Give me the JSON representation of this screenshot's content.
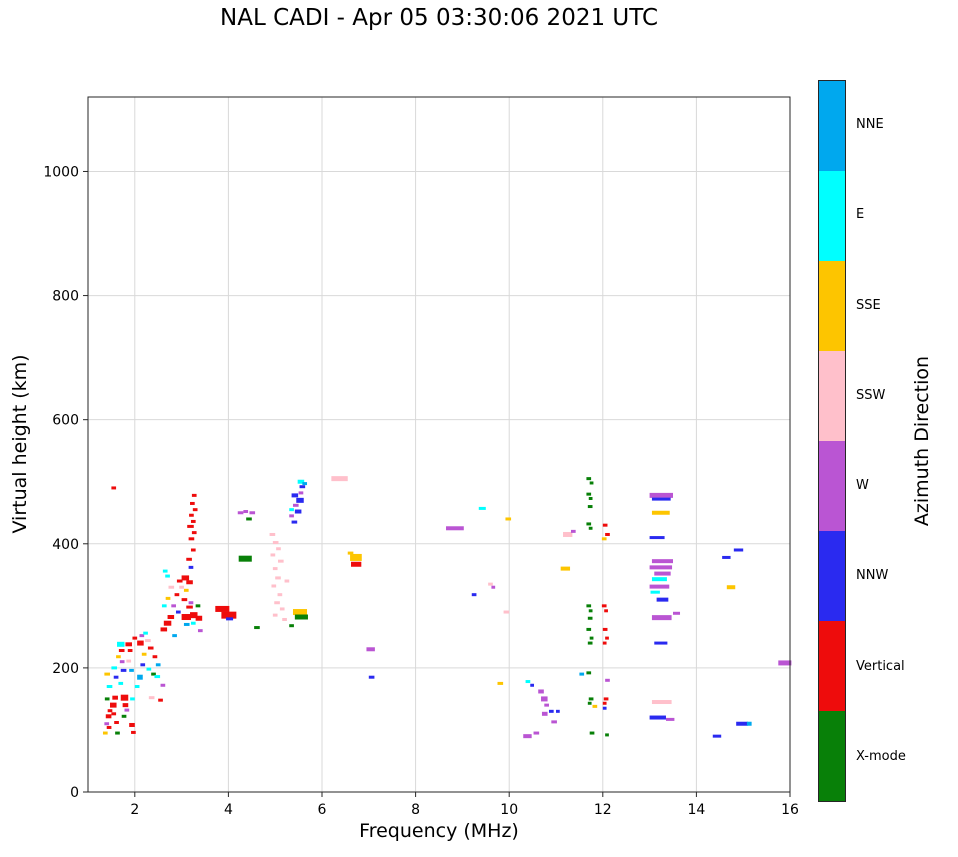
{
  "colorbar": {
    "title": "Azimuth Direction",
    "segments": [
      {
        "code": "NNE",
        "label": "NNE",
        "color": "#00a8ee"
      },
      {
        "code": "E",
        "label": "E",
        "color": "#00ffff"
      },
      {
        "code": "SSE",
        "label": "SSE",
        "color": "#fdc500"
      },
      {
        "code": "SSW",
        "label": "SSW",
        "color": "#ffc0cb"
      },
      {
        "code": "W",
        "label": "W",
        "color": "#ba55d3"
      },
      {
        "code": "NNW",
        "label": "NNW",
        "color": "#2a2af0"
      },
      {
        "code": "V",
        "label": "Vertical",
        "color": "#ee0c0c"
      },
      {
        "code": "X",
        "label": "X-mode",
        "color": "#088008"
      }
    ]
  },
  "chart_data": {
    "type": "scatter",
    "title": "NAL CADI - Apr 05 03:30:06 2021 UTC",
    "xlabel": "Frequency (MHz)",
    "ylabel": "Virtual height (km)",
    "xlim": [
      1,
      16
    ],
    "ylim": [
      0,
      1120
    ],
    "x_ticks": [
      2,
      4,
      6,
      8,
      10,
      12,
      14,
      16
    ],
    "y_ticks": [
      0,
      200,
      400,
      600,
      800,
      1000
    ],
    "grid": true,
    "marker": "horizontal-dash",
    "point_format": [
      "freq_MHz_start",
      "virtual_height_km",
      "width_MHz",
      "azimuth_code",
      "thickness_px_optional"
    ],
    "legend": {
      "title": "Azimuth Direction",
      "position": "right-colorbar",
      "entries_top_to_bottom": [
        "NNE",
        "E",
        "SSE",
        "SSW",
        "W",
        "NNW",
        "Vertical",
        "X-mode"
      ]
    },
    "points": [
      [
        1.32,
        95,
        0.1,
        "SSE"
      ],
      [
        1.35,
        110,
        0.1,
        "W"
      ],
      [
        1.38,
        122,
        0.12,
        "V",
        4
      ],
      [
        1.42,
        131,
        0.1,
        "V"
      ],
      [
        1.4,
        104,
        0.1,
        "V"
      ],
      [
        1.36,
        150,
        0.1,
        "X"
      ],
      [
        1.4,
        170,
        0.12,
        "E"
      ],
      [
        1.35,
        190,
        0.12,
        "SSE"
      ],
      [
        1.5,
        490,
        0.1,
        "V"
      ],
      [
        1.47,
        140,
        0.14,
        "V",
        5
      ],
      [
        1.52,
        152,
        0.12,
        "V",
        4
      ],
      [
        1.5,
        126,
        0.1,
        "V"
      ],
      [
        1.55,
        185,
        0.1,
        "NNW"
      ],
      [
        1.5,
        200,
        0.12,
        "E"
      ],
      [
        1.56,
        112,
        0.1,
        "V"
      ],
      [
        1.58,
        95,
        0.1,
        "X"
      ],
      [
        1.62,
        238,
        0.16,
        "E",
        5
      ],
      [
        1.66,
        228,
        0.12,
        "V"
      ],
      [
        1.6,
        218,
        0.1,
        "SSE"
      ],
      [
        1.68,
        210,
        0.1,
        "W"
      ],
      [
        1.7,
        196,
        0.12,
        "NNW"
      ],
      [
        1.65,
        175,
        0.1,
        "E"
      ],
      [
        1.7,
        152,
        0.16,
        "V",
        6
      ],
      [
        1.74,
        140,
        0.12,
        "V",
        4
      ],
      [
        1.72,
        122,
        0.1,
        "X"
      ],
      [
        1.78,
        132,
        0.1,
        "W"
      ],
      [
        1.8,
        238,
        0.14,
        "V",
        4
      ],
      [
        1.85,
        228,
        0.1,
        "V"
      ],
      [
        1.82,
        211,
        0.1,
        "SSW"
      ],
      [
        1.88,
        196,
        0.1,
        "NNE"
      ],
      [
        1.9,
        150,
        0.1,
        "E"
      ],
      [
        1.88,
        108,
        0.12,
        "V",
        4
      ],
      [
        1.92,
        96,
        0.1,
        "V"
      ],
      [
        1.95,
        248,
        0.1,
        "V"
      ],
      [
        2.05,
        240,
        0.14,
        "V",
        5
      ],
      [
        2.1,
        252,
        0.1,
        "W"
      ],
      [
        2.18,
        256,
        0.1,
        "E"
      ],
      [
        2.22,
        244,
        0.12,
        "SSW"
      ],
      [
        2.28,
        232,
        0.12,
        "V"
      ],
      [
        2.15,
        222,
        0.1,
        "SSE"
      ],
      [
        2.12,
        205,
        0.1,
        "NNW"
      ],
      [
        2.25,
        198,
        0.1,
        "E"
      ],
      [
        2.35,
        190,
        0.1,
        "X"
      ],
      [
        2.42,
        186,
        0.12,
        "E"
      ],
      [
        2.3,
        152,
        0.12,
        "SSW"
      ],
      [
        2.5,
        148,
        0.1,
        "V"
      ],
      [
        2.55,
        172,
        0.1,
        "W"
      ],
      [
        2.45,
        205,
        0.1,
        "NNE"
      ],
      [
        2.38,
        218,
        0.1,
        "V"
      ],
      [
        2.05,
        185,
        0.12,
        "NNE",
        5
      ],
      [
        2.0,
        170,
        0.1,
        "E"
      ],
      [
        2.55,
        262,
        0.14,
        "V",
        4
      ],
      [
        2.62,
        272,
        0.16,
        "V",
        5
      ],
      [
        2.7,
        282,
        0.14,
        "V",
        4
      ],
      [
        2.58,
        300,
        0.1,
        "E"
      ],
      [
        2.66,
        312,
        0.1,
        "SSE"
      ],
      [
        2.72,
        330,
        0.12,
        "SSW"
      ],
      [
        2.65,
        348,
        0.1,
        "E"
      ],
      [
        2.6,
        356,
        0.1,
        "E"
      ],
      [
        2.78,
        300,
        0.1,
        "W"
      ],
      [
        2.85,
        318,
        0.1,
        "V"
      ],
      [
        2.9,
        340,
        0.12,
        "V"
      ],
      [
        2.95,
        330,
        0.1,
        "SSW"
      ],
      [
        2.8,
        252,
        0.1,
        "NNE"
      ],
      [
        2.88,
        290,
        0.1,
        "NNW"
      ],
      [
        3.0,
        345,
        0.16,
        "V",
        5
      ],
      [
        3.1,
        338,
        0.14,
        "V",
        4
      ],
      [
        3.05,
        325,
        0.1,
        "SSE"
      ],
      [
        3.0,
        310,
        0.12,
        "V"
      ],
      [
        3.15,
        305,
        0.1,
        "W"
      ],
      [
        3.1,
        298,
        0.14,
        "V"
      ],
      [
        3.0,
        282,
        0.2,
        "V",
        6
      ],
      [
        3.18,
        285,
        0.16,
        "V",
        6
      ],
      [
        3.3,
        280,
        0.14,
        "V",
        5
      ],
      [
        3.05,
        270,
        0.12,
        "NNE"
      ],
      [
        3.2,
        272,
        0.1,
        "E"
      ],
      [
        3.15,
        362,
        0.1,
        "NNW"
      ],
      [
        3.1,
        375,
        0.12,
        "V"
      ],
      [
        3.2,
        390,
        0.1,
        "V"
      ],
      [
        3.15,
        408,
        0.12,
        "V"
      ],
      [
        3.22,
        418,
        0.1,
        "V"
      ],
      [
        3.12,
        428,
        0.14,
        "V"
      ],
      [
        3.2,
        436,
        0.1,
        "V"
      ],
      [
        3.16,
        446,
        0.1,
        "V"
      ],
      [
        3.24,
        455,
        0.1,
        "V"
      ],
      [
        3.18,
        465,
        0.1,
        "V"
      ],
      [
        3.22,
        478,
        0.1,
        "V"
      ],
      [
        3.3,
        300,
        0.1,
        "X"
      ],
      [
        3.35,
        260,
        0.1,
        "W"
      ],
      [
        3.72,
        295,
        0.3,
        "V",
        6
      ],
      [
        3.85,
        285,
        0.32,
        "V",
        7
      ],
      [
        3.95,
        279,
        0.15,
        "NNW"
      ],
      [
        4.2,
        450,
        0.12,
        "W"
      ],
      [
        4.32,
        452,
        0.1,
        "W"
      ],
      [
        4.45,
        450,
        0.12,
        "W"
      ],
      [
        4.38,
        440,
        0.12,
        "X"
      ],
      [
        4.22,
        376,
        0.28,
        "X",
        6
      ],
      [
        4.55,
        265,
        0.12,
        "X"
      ],
      [
        4.88,
        415,
        0.12,
        "SSW"
      ],
      [
        4.95,
        402,
        0.12,
        "SSW"
      ],
      [
        5.02,
        392,
        0.1,
        "SSW"
      ],
      [
        4.9,
        382,
        0.1,
        "SSW"
      ],
      [
        5.06,
        372,
        0.12,
        "SSW"
      ],
      [
        4.95,
        360,
        0.1,
        "SSW"
      ],
      [
        5.0,
        345,
        0.12,
        "SSW"
      ],
      [
        4.92,
        332,
        0.1,
        "SSW"
      ],
      [
        5.05,
        318,
        0.1,
        "SSW"
      ],
      [
        4.98,
        305,
        0.12,
        "SSW"
      ],
      [
        5.1,
        295,
        0.1,
        "SSW"
      ],
      [
        4.95,
        285,
        0.1,
        "SSW"
      ],
      [
        5.15,
        278,
        0.1,
        "SSW"
      ],
      [
        5.2,
        340,
        0.1,
        "SSW"
      ],
      [
        5.35,
        435,
        0.12,
        "NNW"
      ],
      [
        5.3,
        445,
        0.1,
        "W"
      ],
      [
        5.42,
        452,
        0.14,
        "NNW",
        4
      ],
      [
        5.38,
        462,
        0.12,
        "W"
      ],
      [
        5.45,
        470,
        0.16,
        "NNW",
        5
      ],
      [
        5.35,
        478,
        0.14,
        "NNW",
        4
      ],
      [
        5.5,
        482,
        0.1,
        "W"
      ],
      [
        5.52,
        492,
        0.12,
        "NNW"
      ],
      [
        5.48,
        500,
        0.14,
        "E",
        4
      ],
      [
        5.58,
        497,
        0.1,
        "NNE"
      ],
      [
        5.3,
        455,
        0.1,
        "E"
      ],
      [
        5.38,
        290,
        0.3,
        "SSE",
        6
      ],
      [
        5.42,
        282,
        0.28,
        "X",
        5
      ],
      [
        5.3,
        268,
        0.1,
        "X"
      ],
      [
        6.2,
        505,
        0.35,
        "SSW",
        5
      ],
      [
        6.55,
        385,
        0.12,
        "SSE"
      ],
      [
        6.6,
        378,
        0.25,
        "SSE",
        7
      ],
      [
        6.62,
        367,
        0.22,
        "V",
        5
      ],
      [
        6.95,
        230,
        0.18,
        "W",
        4
      ],
      [
        7.0,
        185,
        0.12,
        "NNW"
      ],
      [
        8.65,
        425,
        0.38,
        "W",
        4
      ],
      [
        9.35,
        457,
        0.15,
        "E"
      ],
      [
        9.2,
        318,
        0.1,
        "NNW"
      ],
      [
        9.55,
        335,
        0.1,
        "SSW"
      ],
      [
        9.62,
        330,
        0.08,
        "W"
      ],
      [
        9.88,
        290,
        0.12,
        "SSW"
      ],
      [
        9.92,
        440,
        0.12,
        "SSE"
      ],
      [
        9.75,
        175,
        0.12,
        "SSE"
      ],
      [
        10.35,
        178,
        0.1,
        "E"
      ],
      [
        10.45,
        172,
        0.08,
        "NNW"
      ],
      [
        10.3,
        90,
        0.18,
        "W",
        4
      ],
      [
        10.52,
        95,
        0.12,
        "W"
      ],
      [
        10.62,
        162,
        0.12,
        "W",
        4
      ],
      [
        10.68,
        150,
        0.14,
        "W",
        5
      ],
      [
        10.75,
        140,
        0.1,
        "W"
      ],
      [
        10.7,
        126,
        0.12,
        "W",
        4
      ],
      [
        10.85,
        130,
        0.1,
        "NNW"
      ],
      [
        10.9,
        113,
        0.12,
        "W"
      ],
      [
        11.0,
        130,
        0.08,
        "NNW"
      ],
      [
        11.1,
        360,
        0.2,
        "SSE",
        4
      ],
      [
        11.15,
        415,
        0.2,
        "SSW",
        5
      ],
      [
        11.32,
        420,
        0.1,
        "W"
      ],
      [
        11.65,
        505,
        0.1,
        "X"
      ],
      [
        11.72,
        498,
        0.08,
        "X"
      ],
      [
        11.65,
        480,
        0.1,
        "X"
      ],
      [
        11.7,
        473,
        0.08,
        "X"
      ],
      [
        11.68,
        460,
        0.1,
        "X"
      ],
      [
        11.65,
        432,
        0.1,
        "X"
      ],
      [
        11.7,
        425,
        0.08,
        "X"
      ],
      [
        11.65,
        300,
        0.1,
        "X"
      ],
      [
        11.7,
        292,
        0.08,
        "X"
      ],
      [
        11.68,
        280,
        0.1,
        "X"
      ],
      [
        11.65,
        262,
        0.1,
        "X"
      ],
      [
        11.72,
        248,
        0.08,
        "X"
      ],
      [
        11.68,
        240,
        0.1,
        "X"
      ],
      [
        11.65,
        192,
        0.1,
        "X"
      ],
      [
        11.7,
        150,
        0.1,
        "X"
      ],
      [
        11.68,
        143,
        0.08,
        "X"
      ],
      [
        11.72,
        95,
        0.1,
        "X"
      ],
      [
        11.5,
        190,
        0.1,
        "NNE"
      ],
      [
        11.78,
        138,
        0.1,
        "SSE"
      ],
      [
        12.0,
        430,
        0.1,
        "V"
      ],
      [
        12.05,
        415,
        0.1,
        "V"
      ],
      [
        11.98,
        408,
        0.1,
        "SSE"
      ],
      [
        11.98,
        300,
        0.1,
        "V"
      ],
      [
        12.03,
        292,
        0.08,
        "V"
      ],
      [
        12.0,
        262,
        0.1,
        "V"
      ],
      [
        12.05,
        248,
        0.08,
        "V"
      ],
      [
        12.0,
        240,
        0.08,
        "V"
      ],
      [
        12.02,
        150,
        0.1,
        "V"
      ],
      [
        12.0,
        143,
        0.08,
        "V"
      ],
      [
        12.05,
        180,
        0.1,
        "W"
      ],
      [
        12.0,
        135,
        0.08,
        "NNW"
      ],
      [
        12.05,
        92,
        0.08,
        "X"
      ],
      [
        13.0,
        478,
        0.5,
        "W",
        5
      ],
      [
        13.05,
        472,
        0.4,
        "NNW",
        3
      ],
      [
        13.05,
        450,
        0.38,
        "SSE",
        4
      ],
      [
        13.0,
        410,
        0.32,
        "NNW",
        3
      ],
      [
        13.05,
        372,
        0.45,
        "W",
        4
      ],
      [
        13.0,
        362,
        0.48,
        "W",
        4
      ],
      [
        13.1,
        352,
        0.35,
        "W",
        4
      ],
      [
        13.05,
        343,
        0.32,
        "E",
        4
      ],
      [
        13.0,
        331,
        0.42,
        "W",
        4
      ],
      [
        13.02,
        322,
        0.2,
        "E",
        3
      ],
      [
        13.15,
        310,
        0.25,
        "NNW",
        4
      ],
      [
        13.05,
        281,
        0.42,
        "W",
        5
      ],
      [
        13.5,
        288,
        0.15,
        "W",
        3
      ],
      [
        13.1,
        240,
        0.28,
        "NNW",
        3
      ],
      [
        13.05,
        145,
        0.42,
        "SSW",
        4
      ],
      [
        13.0,
        120,
        0.35,
        "NNW",
        4
      ],
      [
        13.35,
        117,
        0.18,
        "W",
        3
      ],
      [
        14.35,
        90,
        0.18,
        "NNW",
        3
      ],
      [
        14.55,
        378,
        0.18,
        "NNW",
        3
      ],
      [
        14.8,
        390,
        0.2,
        "NNW",
        3
      ],
      [
        14.65,
        330,
        0.18,
        "SSE",
        4
      ],
      [
        14.85,
        110,
        0.25,
        "NNW",
        4
      ],
      [
        15.08,
        110,
        0.1,
        "NNE",
        4
      ],
      [
        15.75,
        208,
        0.28,
        "W",
        5
      ]
    ]
  }
}
